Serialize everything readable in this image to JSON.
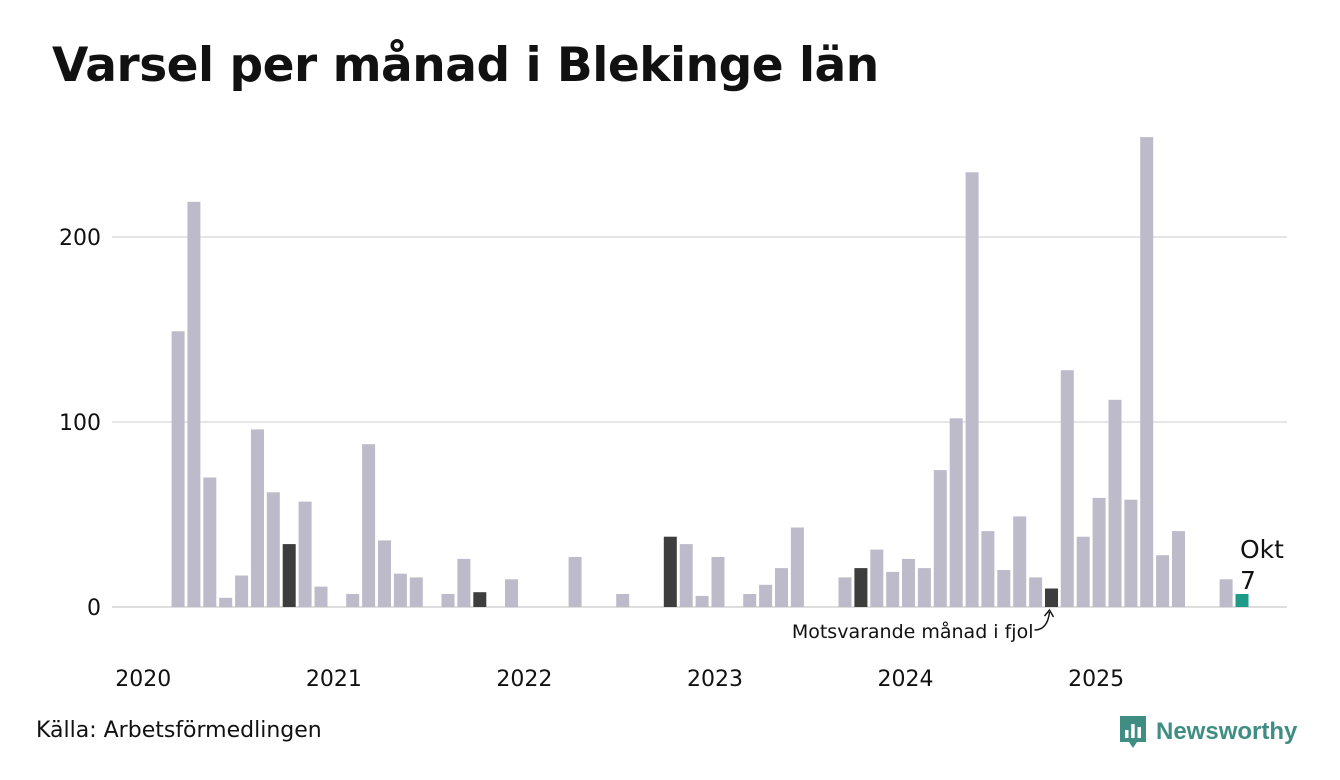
{
  "chart_data": {
    "type": "bar",
    "title": "Varsel per månad i Blekinge län",
    "xlabel": "",
    "ylabel": "",
    "ylim": [
      0,
      254
    ],
    "yticks": [
      0,
      100,
      200
    ],
    "year_labels": [
      "2020",
      "2021",
      "2022",
      "2023",
      "2024",
      "2025"
    ],
    "start": "2020-01",
    "values": [
      0,
      0,
      149,
      219,
      70,
      5,
      17,
      96,
      62,
      34,
      57,
      11,
      0,
      7,
      88,
      36,
      18,
      16,
      0,
      7,
      26,
      8,
      0,
      15,
      0,
      0,
      0,
      27,
      0,
      0,
      7,
      0,
      0,
      38,
      34,
      6,
      27,
      0,
      7,
      12,
      21,
      43,
      0,
      0,
      16,
      21,
      31,
      19,
      26,
      21,
      74,
      102,
      235,
      41,
      20,
      49,
      16,
      10,
      128,
      38,
      59,
      112,
      58,
      254,
      28,
      41,
      0,
      0,
      15,
      7
    ],
    "highlight_same_month": [
      9,
      21,
      33,
      45,
      57
    ],
    "current_index": 69,
    "current_label": "Okt",
    "current_value": "7",
    "annotation": "Motsvarande månad i fjol",
    "colors": {
      "bar": "#bdbbc9",
      "same_month": "#3d3d3d",
      "current": "#1e9a88",
      "grid": "#dedede"
    }
  },
  "source": "Källa: Arbetsförmedlingen",
  "brand": {
    "name": "Newsworthy",
    "icon": "newsworthy-logo-icon",
    "color": "#3f8d83"
  }
}
